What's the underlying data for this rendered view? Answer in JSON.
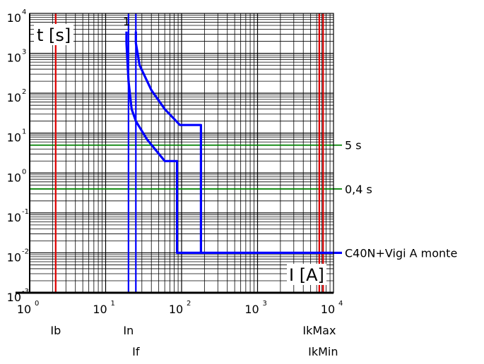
{
  "chart_data": {
    "type": "line",
    "title": "",
    "x_scale": "log",
    "y_scale": "log",
    "xlim": [
      1,
      10000
    ],
    "ylim": [
      0.001,
      10000
    ],
    "axis_labels": {
      "y": "t [s]",
      "x": "I [A]"
    },
    "x_ticks": [
      {
        "base": "10",
        "exp": "0",
        "value": 1
      },
      {
        "base": "10",
        "exp": "1",
        "value": 10
      },
      {
        "base": "10",
        "exp": "2",
        "value": 100
      },
      {
        "base": "10",
        "exp": "3",
        "value": 1000
      },
      {
        "base": "10",
        "exp": "4",
        "value": 10000
      }
    ],
    "y_ticks": [
      {
        "base": "10",
        "exp": "-3",
        "value": 0.001
      },
      {
        "base": "10",
        "exp": "-2",
        "value": 0.01
      },
      {
        "base": "10",
        "exp": "-1",
        "value": 0.1
      },
      {
        "base": "10",
        "exp": "0",
        "value": 1
      },
      {
        "base": "10",
        "exp": "1",
        "value": 10
      },
      {
        "base": "10",
        "exp": "2",
        "value": 100
      },
      {
        "base": "10",
        "exp": "3",
        "value": 1000
      },
      {
        "base": "10",
        "exp": "4",
        "value": 10000
      }
    ],
    "grid": true,
    "curve_marker_label": "1",
    "series": [
      {
        "name": "C40N+Vigi A monte",
        "color": "#0000ff",
        "lower_curve": [
          [
            18.8,
            3500
          ],
          [
            18.8,
            1800
          ],
          [
            20,
            200
          ],
          [
            22,
            40
          ],
          [
            25,
            20
          ],
          [
            35,
            7
          ],
          [
            60,
            2
          ],
          [
            87,
            2
          ],
          [
            87,
            0.01
          ],
          [
            10000,
            0.01
          ]
        ],
        "upper_curve": [
          [
            25,
            3500
          ],
          [
            25,
            1800
          ],
          [
            28,
            500
          ],
          [
            40,
            120
          ],
          [
            60,
            40
          ],
          [
            95,
            16
          ],
          [
            180,
            16
          ],
          [
            180,
            0.01
          ]
        ]
      }
    ],
    "vertical_lines": [
      {
        "label": "Ib",
        "x": 2.2,
        "color": "#e00000",
        "label_row": 1
      },
      {
        "label": "In",
        "x": 20,
        "color": "#0000ff",
        "label_row": 1
      },
      {
        "label": "If",
        "x": 25,
        "color": "#0000ff",
        "label_row": 2
      },
      {
        "label": "IkMax",
        "x": 6500,
        "color": "#e00000",
        "label_row": 1
      },
      {
        "label": "IkMin",
        "x": 7300,
        "color": "#e00000",
        "label_row": 2
      }
    ],
    "horizontal_lines": [
      {
        "label": "5 s",
        "y": 5,
        "color": "#008000"
      },
      {
        "label": "0,4 s",
        "y": 0.4,
        "color": "#008000"
      }
    ]
  }
}
